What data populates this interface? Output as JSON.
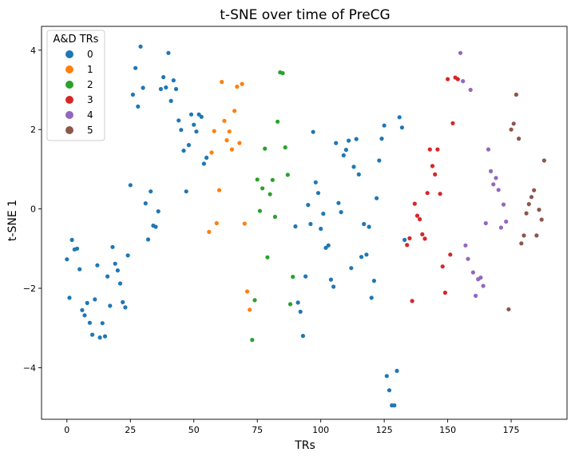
{
  "chart_data": {
    "type": "scatter",
    "title": "t-SNE over time of PreCG",
    "xlabel": "TRs",
    "ylabel": "t-SNE 1",
    "xlim": [
      -10,
      197
    ],
    "ylim": [
      -5.3,
      4.6
    ],
    "xticks": [
      0,
      25,
      50,
      75,
      100,
      125,
      150,
      175
    ],
    "yticks": [
      -4,
      -2,
      0,
      2,
      4
    ],
    "grid": false,
    "legend": {
      "title": "A&D TRs",
      "position": "top-left"
    },
    "series": [
      {
        "name": "0",
        "color": "#1f77b4",
        "points": [
          [
            0,
            -1.27
          ],
          [
            1,
            -2.24
          ],
          [
            2,
            -0.78
          ],
          [
            3,
            -1.02
          ],
          [
            4,
            -1.0
          ],
          [
            5,
            -1.52
          ],
          [
            6,
            -2.55
          ],
          [
            7,
            -2.68
          ],
          [
            8,
            -2.37
          ],
          [
            9,
            -2.87
          ],
          [
            10,
            -3.17
          ],
          [
            11,
            -2.28
          ],
          [
            12,
            -1.42
          ],
          [
            13,
            -3.24
          ],
          [
            14,
            -2.88
          ],
          [
            15,
            -3.21
          ],
          [
            16,
            -1.7
          ],
          [
            17,
            -2.44
          ],
          [
            18,
            -0.96
          ],
          [
            19,
            -1.38
          ],
          [
            20,
            -1.55
          ],
          [
            21,
            -1.88
          ],
          [
            22,
            -2.35
          ],
          [
            23,
            -2.48
          ],
          [
            24,
            -1.17
          ],
          [
            25,
            0.6
          ],
          [
            26,
            2.88
          ],
          [
            27,
            3.55
          ],
          [
            28,
            2.58
          ],
          [
            29,
            4.09
          ],
          [
            30,
            3.05
          ],
          [
            31,
            0.14
          ],
          [
            32,
            -0.77
          ],
          [
            33,
            0.44
          ],
          [
            34,
            -0.42
          ],
          [
            35,
            -0.45
          ],
          [
            36,
            -0.06
          ],
          [
            37,
            3.02
          ],
          [
            38,
            3.32
          ],
          [
            39,
            3.06
          ],
          [
            40,
            3.93
          ],
          [
            41,
            2.72
          ],
          [
            42,
            3.24
          ],
          [
            43,
            3.02
          ],
          [
            44,
            2.23
          ],
          [
            45,
            1.99
          ],
          [
            46,
            1.47
          ],
          [
            47,
            0.44
          ],
          [
            48,
            1.61
          ],
          [
            49,
            2.38
          ],
          [
            50,
            2.12
          ],
          [
            51,
            1.95
          ],
          [
            52,
            2.38
          ],
          [
            53,
            2.32
          ],
          [
            54,
            1.14
          ],
          [
            55,
            1.29
          ],
          [
            90,
            -0.44
          ],
          [
            91,
            -2.36
          ],
          [
            92,
            -2.59
          ],
          [
            93,
            -3.2
          ],
          [
            94,
            -1.7
          ],
          [
            95,
            0.1
          ],
          [
            96,
            -0.38
          ],
          [
            97,
            1.94
          ],
          [
            98,
            0.67
          ],
          [
            99,
            0.4
          ],
          [
            100,
            -0.5
          ],
          [
            101,
            -0.12
          ],
          [
            102,
            -0.98
          ],
          [
            103,
            -0.92
          ],
          [
            104,
            -1.78
          ],
          [
            105,
            -1.96
          ],
          [
            106,
            1.66
          ],
          [
            107,
            0.15
          ],
          [
            108,
            -0.08
          ],
          [
            109,
            1.35
          ],
          [
            110,
            1.49
          ],
          [
            111,
            1.72
          ],
          [
            112,
            -1.49
          ],
          [
            113,
            1.06
          ],
          [
            114,
            1.76
          ],
          [
            115,
            0.87
          ],
          [
            116,
            -1.21
          ],
          [
            117,
            -0.38
          ],
          [
            118,
            -1.15
          ],
          [
            119,
            -0.45
          ],
          [
            120,
            -2.24
          ],
          [
            121,
            -1.81
          ],
          [
            122,
            0.27
          ],
          [
            123,
            1.22
          ],
          [
            124,
            1.77
          ],
          [
            125,
            2.1
          ],
          [
            126,
            -4.21
          ],
          [
            127,
            -4.57
          ],
          [
            128,
            -4.95
          ],
          [
            129,
            -4.95
          ],
          [
            130,
            -4.08
          ],
          [
            131,
            2.31
          ],
          [
            132,
            2.05
          ],
          [
            133,
            -0.78
          ]
        ]
      },
      {
        "name": "1",
        "color": "#ff7f0e",
        "points": [
          [
            56,
            -0.58
          ],
          [
            57,
            1.42
          ],
          [
            58,
            1.96
          ],
          [
            59,
            -0.36
          ],
          [
            60,
            0.47
          ],
          [
            61,
            3.2
          ],
          [
            62,
            2.22
          ],
          [
            63,
            1.73
          ],
          [
            64,
            1.95
          ],
          [
            65,
            1.5
          ],
          [
            66,
            2.47
          ],
          [
            67,
            3.08
          ],
          [
            68,
            1.66
          ],
          [
            69,
            3.15
          ],
          [
            70,
            -0.37
          ],
          [
            71,
            -2.08
          ],
          [
            72,
            -2.54
          ]
        ]
      },
      {
        "name": "2",
        "color": "#2ca02c",
        "points": [
          [
            73,
            -3.3
          ],
          [
            74,
            -2.3
          ],
          [
            75,
            0.74
          ],
          [
            76,
            -0.05
          ],
          [
            77,
            0.52
          ],
          [
            78,
            1.52
          ],
          [
            79,
            -1.22
          ],
          [
            80,
            0.37
          ],
          [
            81,
            0.73
          ],
          [
            82,
            -0.2
          ],
          [
            83,
            2.2
          ],
          [
            84,
            3.44
          ],
          [
            85,
            3.42
          ],
          [
            86,
            1.55
          ],
          [
            87,
            0.86
          ],
          [
            88,
            -2.4
          ],
          [
            89,
            -1.71
          ]
        ]
      },
      {
        "name": "3",
        "color": "#d62728",
        "points": [
          [
            134,
            -0.91
          ],
          [
            135,
            -0.74
          ],
          [
            136,
            -2.32
          ],
          [
            137,
            0.13
          ],
          [
            138,
            -0.17
          ],
          [
            139,
            -0.26
          ],
          [
            140,
            -0.64
          ],
          [
            141,
            -0.75
          ],
          [
            142,
            0.4
          ],
          [
            143,
            1.5
          ],
          [
            144,
            1.08
          ],
          [
            145,
            0.87
          ],
          [
            146,
            1.5
          ],
          [
            147,
            0.38
          ],
          [
            148,
            -1.45
          ],
          [
            149,
            -2.11
          ],
          [
            150,
            3.27
          ],
          [
            151,
            -1.15
          ],
          [
            152,
            2.16
          ],
          [
            153,
            3.31
          ],
          [
            154,
            3.27
          ]
        ]
      },
      {
        "name": "4",
        "color": "#9467bd",
        "points": [
          [
            155,
            3.93
          ],
          [
            156,
            3.22
          ],
          [
            157,
            -0.92
          ],
          [
            158,
            -1.26
          ],
          [
            159,
            3.0
          ],
          [
            160,
            -1.6
          ],
          [
            161,
            -2.19
          ],
          [
            162,
            -1.77
          ],
          [
            163,
            -1.73
          ],
          [
            164,
            -1.94
          ],
          [
            165,
            -0.36
          ],
          [
            166,
            1.5
          ],
          [
            167,
            0.95
          ],
          [
            168,
            0.62
          ],
          [
            169,
            0.78
          ],
          [
            170,
            0.48
          ],
          [
            171,
            -0.47
          ],
          [
            172,
            0.11
          ],
          [
            173,
            -0.32
          ]
        ]
      },
      {
        "name": "5",
        "color": "#8c564b",
        "points": [
          [
            174,
            -2.53
          ],
          [
            175,
            2.0
          ],
          [
            176,
            2.15
          ],
          [
            177,
            2.88
          ],
          [
            178,
            1.77
          ],
          [
            179,
            -0.87
          ],
          [
            180,
            -0.67
          ],
          [
            181,
            -0.11
          ],
          [
            182,
            0.12
          ],
          [
            183,
            0.3
          ],
          [
            184,
            0.47
          ],
          [
            185,
            -0.67
          ],
          [
            186,
            -0.02
          ],
          [
            187,
            -0.27
          ],
          [
            188,
            1.22
          ]
        ]
      }
    ]
  }
}
